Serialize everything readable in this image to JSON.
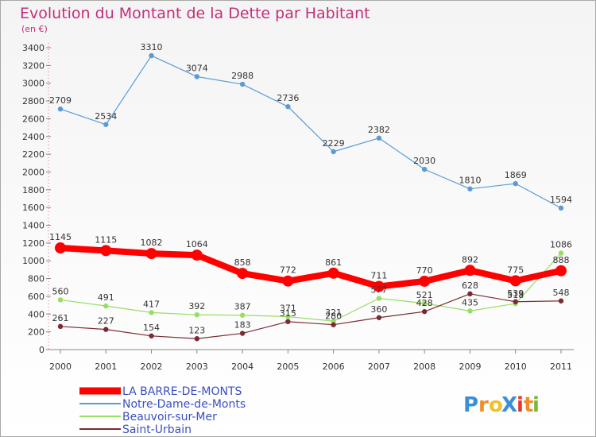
{
  "title": "Evolution du Montant de la Dette par Habitant",
  "subtitle": "(en €)",
  "logo": {
    "text": "ProXiti",
    "letters": [
      "P",
      "r",
      "o",
      "X",
      "i",
      "t",
      "i"
    ],
    "colors": [
      "#3a8fd6",
      "#f28c28",
      "#f2c02b",
      "#3a8fd6",
      "#e8362d",
      "#f28c28",
      "#7ab83c"
    ]
  },
  "chart_data": {
    "type": "line",
    "title": "Evolution du Montant de la Dette par Habitant",
    "subtitle": "(en €)",
    "xlabel": "",
    "ylabel": "",
    "x": [
      "2000",
      "2001",
      "2002",
      "2003",
      "2004",
      "2005",
      "2006",
      "2007",
      "2008",
      "2009",
      "2010",
      "2011"
    ],
    "ylim": [
      0,
      3400
    ],
    "yticks": [
      0,
      200,
      400,
      600,
      800,
      1000,
      1200,
      1400,
      1600,
      1800,
      2000,
      2200,
      2400,
      2600,
      2800,
      3000,
      3200,
      3400
    ],
    "grid": false,
    "legend_position": "bottom-left",
    "series": [
      {
        "name": "Notre-Dame-de-Monts",
        "color": "#5b9bd5",
        "values": [
          2709,
          2534,
          3310,
          3074,
          2988,
          2736,
          2229,
          2382,
          2030,
          1810,
          1869,
          1594
        ]
      },
      {
        "name": "Beauvoir-sur-Mer",
        "color": "#99dd66",
        "values": [
          560,
          491,
          417,
          392,
          387,
          371,
          321,
          577,
          521,
          435,
          518,
          1086
        ]
      },
      {
        "name": "Saint-Urbain",
        "color": "#7a2a32",
        "values": [
          261,
          227,
          154,
          123,
          183,
          315,
          280,
          360,
          428,
          628,
          539,
          548
        ]
      },
      {
        "name": "LA BARRE-DE-MONTS",
        "color": "#ff0000",
        "values": [
          1145,
          1115,
          1082,
          1064,
          858,
          772,
          861,
          711,
          770,
          892,
          775,
          888
        ]
      }
    ],
    "legend_order": [
      "LA BARRE-DE-MONTS",
      "Notre-Dame-de-Monts",
      "Beauvoir-sur-Mer",
      "Saint-Urbain"
    ]
  }
}
